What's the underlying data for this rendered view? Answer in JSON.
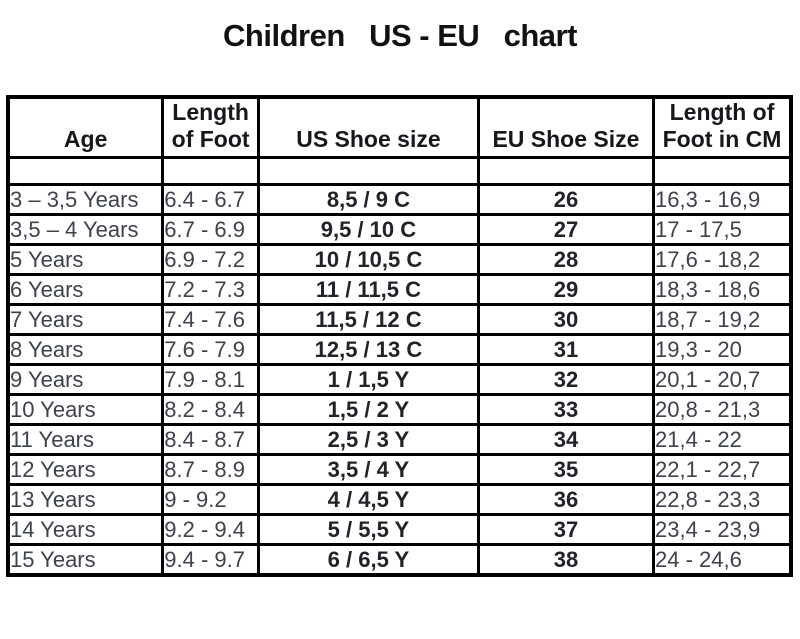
{
  "title": "Children   US - EU   chart",
  "colors": {
    "background": "#ffffff",
    "border": "#000000",
    "header_text": "#17181c",
    "data_text": "#3e424b",
    "bold_data_text": "#222329"
  },
  "chart_data": {
    "type": "table",
    "title": "Children US - EU chart",
    "columns": [
      "Age",
      "Length of Foot",
      "US Shoe size",
      "EU Shoe Size",
      "Length of Foot in CM"
    ],
    "header_lines": [
      [
        "Age"
      ],
      [
        "Length",
        "of Foot"
      ],
      [
        "US Shoe size"
      ],
      [
        "EU Shoe Size"
      ],
      [
        "Length of",
        "Foot in CM"
      ]
    ],
    "rows": [
      [
        "3 – 3,5 Years",
        "6.4 - 6.7",
        "8,5 / 9 C",
        "26",
        "16,3 - 16,9"
      ],
      [
        "3,5 – 4 Years",
        "6.7 - 6.9",
        "9,5 / 10 C",
        "27",
        "17 - 17,5"
      ],
      [
        "5 Years",
        "6.9 - 7.2",
        "10 / 10,5 C",
        "28",
        "17,6 - 18,2"
      ],
      [
        "6 Years",
        "7.2 - 7.3",
        "11 / 11,5 C",
        "29",
        "18,3 - 18,6"
      ],
      [
        "7 Years",
        "7.4 - 7.6",
        "11,5 / 12 C",
        "30",
        "18,7 - 19,2"
      ],
      [
        "8 Years",
        "7.6 - 7.9",
        "12,5 / 13 C",
        "31",
        "19,3 - 20"
      ],
      [
        "9 Years",
        "7.9 - 8.1",
        "1 / 1,5 Y",
        "32",
        "20,1 - 20,7"
      ],
      [
        "10 Years",
        "8.2 - 8.4",
        "1,5 / 2 Y",
        "33",
        "20,8 - 21,3"
      ],
      [
        "11 Years",
        "8.4 - 8.7",
        "2,5 / 3 Y",
        "34",
        "21,4 - 22"
      ],
      [
        "12 Years",
        "8.7 - 8.9",
        "3,5 / 4 Y",
        "35",
        "22,1 - 22,7"
      ],
      [
        "13 Years",
        "9 - 9.2",
        "4 / 4,5 Y",
        "36",
        "22,8 - 23,3"
      ],
      [
        "14 Years",
        "9.2 - 9.4",
        "5 / 5,5 Y",
        "37",
        "23,4 - 23,9"
      ],
      [
        "15 Years",
        "9.4 - 9.7",
        "6 / 6,5 Y",
        "38",
        "24 - 24,6"
      ]
    ]
  }
}
